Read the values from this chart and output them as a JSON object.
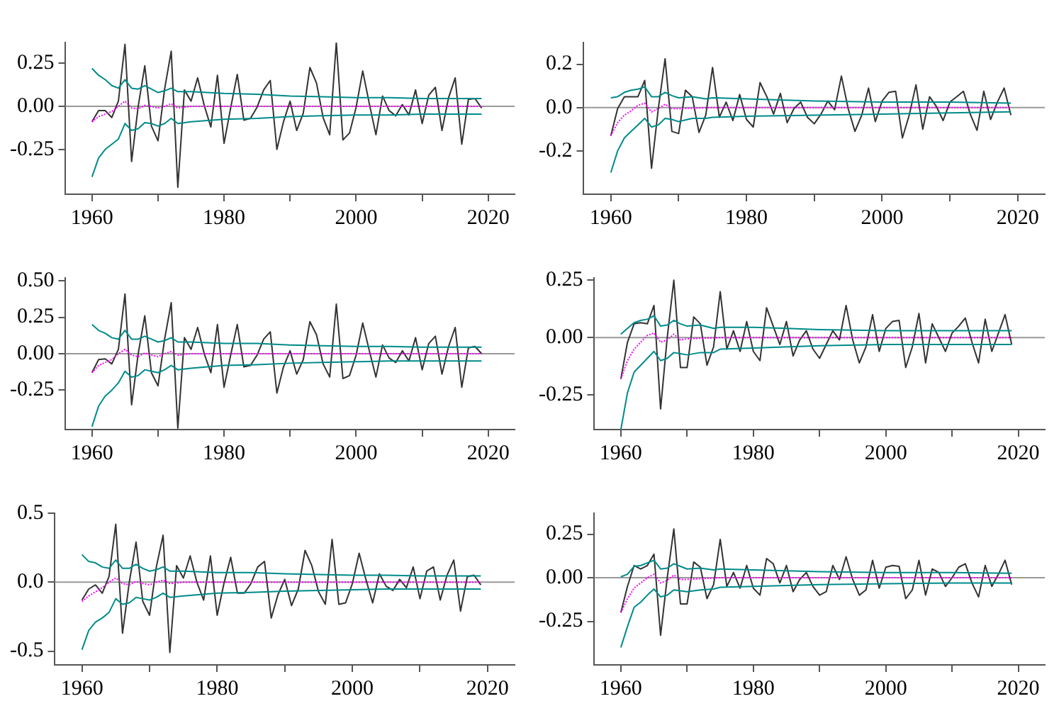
{
  "chart_data": [
    {
      "type": "line",
      "xlim": [
        1956,
        2024
      ],
      "xticks": [
        1960,
        {
          "value": 1970,
          "label": null
        },
        1980,
        {
          "value": 1990,
          "label": null
        },
        2000,
        {
          "value": 2010,
          "label": null
        },
        2020
      ],
      "ylim": [
        -0.51,
        0.37
      ],
      "yticks": [
        -0.25,
        "0.00",
        0.25
      ],
      "ref_lines": [
        {
          "axis": "y",
          "value": 0,
          "color": "#999999"
        }
      ],
      "series": [
        {
          "color": "#008b8b",
          "x": [
            1960,
            1961,
            1962,
            1963,
            1964,
            1965,
            1966,
            1967,
            1968,
            1969,
            1970,
            1971,
            1972,
            1973,
            1975,
            1980,
            1985,
            1990,
            1995,
            2000,
            2005,
            2010,
            2015,
            2019
          ],
          "values": [
            0.22,
            0.18,
            0.155,
            0.12,
            0.105,
            0.155,
            0.105,
            0.1,
            0.12,
            0.1,
            0.08,
            0.09,
            0.105,
            0.085,
            0.085,
            0.075,
            0.07,
            0.06,
            0.055,
            0.05,
            0.05,
            0.045,
            0.045,
            0.045
          ]
        },
        {
          "color": "#008b8b",
          "x": [
            1960,
            1961,
            1962,
            1963,
            1964,
            1965,
            1966,
            1967,
            1968,
            1969,
            1970,
            1971,
            1972,
            1973,
            1975,
            1980,
            1985,
            1990,
            1995,
            2000,
            2005,
            2010,
            2015,
            2019
          ],
          "values": [
            -0.41,
            -0.3,
            -0.25,
            -0.22,
            -0.19,
            -0.1,
            -0.14,
            -0.13,
            -0.095,
            -0.1,
            -0.115,
            -0.1,
            -0.07,
            -0.1,
            -0.09,
            -0.075,
            -0.07,
            -0.06,
            -0.055,
            -0.05,
            -0.05,
            -0.045,
            -0.045,
            -0.045
          ]
        },
        {
          "color": "#ff00ff",
          "line_style": "dotted",
          "x": [
            1960,
            1961,
            1962,
            1963,
            1964,
            1965,
            1966,
            1967,
            1968,
            1969,
            1970,
            1971,
            1972,
            1973,
            1975,
            1980,
            2019
          ],
          "values": [
            -0.09,
            -0.06,
            -0.045,
            -0.03,
            0.0,
            0.03,
            -0.01,
            -0.015,
            0.005,
            0.0,
            -0.01,
            0.0,
            0.015,
            -0.01,
            0.0,
            0.0,
            0.0
          ]
        },
        {
          "color": "#333333",
          "x": [
            1960,
            1961,
            1962,
            1963,
            1964,
            1965,
            1966,
            1967,
            1968,
            1969,
            1970,
            1971,
            1972,
            1973,
            1974,
            1975,
            1976,
            1977,
            1978,
            1979,
            1980,
            1981,
            1982,
            1983,
            1984,
            1985,
            1986,
            1987,
            1988,
            1989,
            1990,
            1991,
            1992,
            1993,
            1994,
            1995,
            1996,
            1997,
            1998,
            1999,
            2000,
            2001,
            2002,
            2003,
            2004,
            2005,
            2006,
            2007,
            2008,
            2009,
            2010,
            2011,
            2012,
            2013,
            2014,
            2015,
            2016,
            2017,
            2018,
            2019
          ],
          "values": [
            -0.09,
            -0.025,
            -0.025,
            -0.065,
            0.03,
            0.36,
            -0.32,
            0.0,
            0.235,
            -0.115,
            -0.2,
            0.1,
            0.32,
            -0.47,
            0.095,
            0.03,
            0.165,
            0.005,
            -0.12,
            0.18,
            -0.215,
            -0.01,
            0.185,
            -0.08,
            -0.07,
            -0.005,
            0.095,
            0.15,
            -0.25,
            -0.09,
            0.03,
            -0.14,
            -0.04,
            0.225,
            0.135,
            -0.065,
            -0.165,
            0.37,
            -0.195,
            -0.155,
            -0.005,
            0.205,
            0.015,
            -0.165,
            0.06,
            -0.025,
            -0.055,
            0.01,
            -0.05,
            0.095,
            -0.1,
            0.065,
            0.11,
            -0.14,
            0.05,
            0.165,
            -0.22,
            0.04,
            0.045,
            -0.01
          ]
        }
      ]
    },
    {
      "type": "line",
      "xlim": [
        1956,
        2024
      ],
      "xticks": [
        1960,
        {
          "value": 1970,
          "label": null
        },
        1980,
        {
          "value": 1990,
          "label": null
        },
        2000,
        {
          "value": 2010,
          "label": null
        },
        2020
      ],
      "ylim": [
        -0.4,
        0.3
      ],
      "yticks": [
        -0.2,
        "0.0",
        0.2
      ],
      "ref_lines": [
        {
          "axis": "y",
          "value": 0,
          "color": "#999999"
        }
      ],
      "series": [
        {
          "color": "#008b8b",
          "x": [
            1960,
            1961,
            1962,
            1963,
            1964,
            1965,
            1966,
            1967,
            1968,
            1969,
            1970,
            1972,
            1974,
            1975,
            1980,
            1985,
            1990,
            2000,
            2010,
            2019
          ],
          "values": [
            0.045,
            0.05,
            0.07,
            0.08,
            0.085,
            0.095,
            0.05,
            0.05,
            0.07,
            0.055,
            0.045,
            0.05,
            0.04,
            0.045,
            0.04,
            0.035,
            0.03,
            0.025,
            0.025,
            0.02
          ]
        },
        {
          "color": "#008b8b",
          "x": [
            1960,
            1961,
            1962,
            1963,
            1964,
            1965,
            1966,
            1967,
            1968,
            1969,
            1970,
            1972,
            1974,
            1975,
            1980,
            1990,
            2000,
            2010,
            2019
          ],
          "values": [
            -0.3,
            -0.2,
            -0.14,
            -0.11,
            -0.08,
            -0.05,
            -0.09,
            -0.08,
            -0.05,
            -0.055,
            -0.065,
            -0.05,
            -0.05,
            -0.045,
            -0.04,
            -0.035,
            -0.03,
            -0.025,
            -0.02
          ]
        },
        {
          "color": "#ff00ff",
          "line_style": "dotted",
          "x": [
            1960,
            1961,
            1962,
            1963,
            1964,
            1965,
            1966,
            1967,
            1968,
            1969,
            1970,
            1975,
            2019
          ],
          "values": [
            -0.13,
            -0.07,
            -0.035,
            -0.015,
            0.01,
            0.02,
            -0.02,
            -0.005,
            0.015,
            -0.005,
            -0.005,
            0.0,
            0.0
          ]
        },
        {
          "color": "#333333",
          "x": [
            1960,
            1961,
            1962,
            1963,
            1964,
            1965,
            1966,
            1967,
            1968,
            1969,
            1970,
            1971,
            1972,
            1973,
            1974,
            1975,
            1976,
            1977,
            1978,
            1979,
            1980,
            1981,
            1982,
            1983,
            1984,
            1985,
            1986,
            1987,
            1988,
            1989,
            1990,
            1991,
            1992,
            1993,
            1994,
            1995,
            1996,
            1997,
            1998,
            1999,
            2000,
            2001,
            2002,
            2003,
            2004,
            2005,
            2006,
            2007,
            2008,
            2009,
            2010,
            2011,
            2012,
            2013,
            2014,
            2015,
            2016,
            2017,
            2018,
            2019
          ],
          "values": [
            -0.13,
            -0.005,
            0.05,
            0.05,
            0.05,
            0.125,
            -0.28,
            -0.005,
            0.225,
            -0.11,
            -0.12,
            0.08,
            0.05,
            -0.115,
            -0.035,
            0.185,
            -0.045,
            0.025,
            -0.06,
            0.06,
            -0.055,
            -0.09,
            0.115,
            0.05,
            -0.03,
            0.065,
            -0.07,
            -0.005,
            0.025,
            -0.045,
            -0.075,
            -0.03,
            0.03,
            -0.01,
            0.145,
            -0.005,
            -0.11,
            -0.035,
            0.09,
            -0.065,
            0.03,
            0.07,
            0.075,
            -0.14,
            -0.035,
            0.105,
            -0.1,
            0.05,
            0.005,
            -0.06,
            0.025,
            0.05,
            0.075,
            -0.03,
            -0.105,
            0.075,
            -0.055,
            0.025,
            0.09,
            -0.035
          ]
        }
      ]
    },
    {
      "type": "line",
      "xlim": [
        1956,
        2024
      ],
      "xticks": [
        1960,
        {
          "value": 1970,
          "label": null
        },
        1980,
        {
          "value": 1990,
          "label": null
        },
        2000,
        {
          "value": 2010,
          "label": null
        },
        2020
      ],
      "ylim": [
        -0.52,
        0.52
      ],
      "yticks": [
        -0.25,
        "0.00",
        0.25,
        "0.50"
      ],
      "ref_lines": [
        {
          "axis": "y",
          "value": 0,
          "color": "#999999"
        }
      ],
      "series": [
        {
          "color": "#008b8b",
          "x": [
            1960,
            1961,
            1962,
            1963,
            1964,
            1965,
            1966,
            1967,
            1968,
            1969,
            1970,
            1971,
            1972,
            1973,
            1975,
            1980,
            1985,
            1990,
            1995,
            2000,
            2005,
            2010,
            2019
          ],
          "values": [
            0.2,
            0.16,
            0.14,
            0.11,
            0.1,
            0.16,
            0.1,
            0.1,
            0.12,
            0.1,
            0.08,
            0.09,
            0.11,
            0.08,
            0.08,
            0.07,
            0.07,
            0.06,
            0.055,
            0.05,
            0.05,
            0.045,
            0.045
          ]
        },
        {
          "color": "#008b8b",
          "x": [
            1960,
            1961,
            1962,
            1963,
            1964,
            1965,
            1966,
            1967,
            1968,
            1969,
            1970,
            1971,
            1972,
            1973,
            1975,
            1980,
            1985,
            1990,
            1995,
            2000,
            2005,
            2010,
            2019
          ],
          "values": [
            -0.5,
            -0.36,
            -0.29,
            -0.25,
            -0.2,
            -0.12,
            -0.16,
            -0.15,
            -0.11,
            -0.12,
            -0.13,
            -0.11,
            -0.08,
            -0.11,
            -0.1,
            -0.08,
            -0.075,
            -0.065,
            -0.06,
            -0.055,
            -0.05,
            -0.05,
            -0.05
          ]
        },
        {
          "color": "#ff00ff",
          "line_style": "dotted",
          "x": [
            1960,
            1961,
            1962,
            1963,
            1964,
            1965,
            1966,
            1967,
            1968,
            1969,
            1970,
            1971,
            1972,
            1973,
            1975,
            1980,
            2019
          ],
          "values": [
            -0.13,
            -0.08,
            -0.06,
            -0.04,
            0.0,
            0.03,
            -0.01,
            -0.02,
            0.005,
            -0.01,
            -0.02,
            0.0,
            0.015,
            -0.01,
            0.0,
            0.0,
            0.0
          ]
        },
        {
          "color": "#333333",
          "x": [
            1960,
            1961,
            1962,
            1963,
            1964,
            1965,
            1966,
            1967,
            1968,
            1969,
            1970,
            1971,
            1972,
            1973,
            1974,
            1975,
            1976,
            1977,
            1978,
            1979,
            1980,
            1981,
            1982,
            1983,
            1984,
            1985,
            1986,
            1987,
            1988,
            1989,
            1990,
            1991,
            1992,
            1993,
            1994,
            1995,
            1996,
            1997,
            1998,
            1999,
            2000,
            2001,
            2002,
            2003,
            2004,
            2005,
            2006,
            2007,
            2008,
            2009,
            2010,
            2011,
            2012,
            2013,
            2014,
            2015,
            2016,
            2017,
            2018,
            2019
          ],
          "values": [
            -0.13,
            -0.04,
            -0.035,
            -0.07,
            0.03,
            0.41,
            -0.35,
            0.0,
            0.26,
            -0.13,
            -0.22,
            0.1,
            0.35,
            -0.51,
            0.11,
            0.03,
            0.18,
            0.0,
            -0.13,
            0.2,
            -0.23,
            -0.01,
            0.2,
            -0.09,
            -0.08,
            -0.01,
            0.1,
            0.15,
            -0.27,
            -0.09,
            0.02,
            -0.14,
            -0.04,
            0.22,
            0.13,
            -0.07,
            -0.16,
            0.34,
            -0.17,
            -0.15,
            -0.01,
            0.21,
            0.02,
            -0.16,
            0.06,
            -0.03,
            -0.06,
            0.02,
            -0.05,
            0.11,
            -0.11,
            0.07,
            0.12,
            -0.14,
            0.05,
            0.18,
            -0.23,
            0.04,
            0.05,
            0.0
          ]
        }
      ]
    },
    {
      "type": "line",
      "xlim": [
        1956,
        2024
      ],
      "xticks": [
        1960,
        {
          "value": 1970,
          "label": null
        },
        1980,
        {
          "value": 1990,
          "label": null
        },
        2000,
        {
          "value": 2010,
          "label": null
        },
        2020
      ],
      "ylim": [
        -0.4,
        0.26
      ],
      "yticks": [
        -0.25,
        "0.00",
        0.25
      ],
      "ref_lines": [
        {
          "axis": "y",
          "value": 0,
          "color": "#999999"
        }
      ],
      "series": [
        {
          "color": "#008b8b",
          "x": [
            1960,
            1961,
            1962,
            1963,
            1964,
            1965,
            1966,
            1967,
            1968,
            1969,
            1970,
            1972,
            1974,
            1975,
            1980,
            1985,
            1990,
            2000,
            2010,
            2019
          ],
          "values": [
            0.015,
            0.04,
            0.065,
            0.075,
            0.08,
            0.095,
            0.05,
            0.055,
            0.075,
            0.06,
            0.05,
            0.055,
            0.04,
            0.045,
            0.045,
            0.04,
            0.035,
            0.03,
            0.03,
            0.03
          ]
        },
        {
          "color": "#008b8b",
          "x": [
            1960,
            1961,
            1962,
            1963,
            1964,
            1965,
            1966,
            1967,
            1968,
            1969,
            1970,
            1972,
            1974,
            1975,
            1980,
            1990,
            2000,
            2010,
            2019
          ],
          "values": [
            -0.4,
            -0.24,
            -0.15,
            -0.12,
            -0.09,
            -0.06,
            -0.1,
            -0.09,
            -0.065,
            -0.07,
            -0.075,
            -0.065,
            -0.065,
            -0.05,
            -0.045,
            -0.035,
            -0.03,
            -0.03,
            -0.03
          ]
        },
        {
          "color": "#ff00ff",
          "line_style": "dotted",
          "x": [
            1960,
            1961,
            1962,
            1963,
            1964,
            1965,
            1966,
            1967,
            1968,
            1969,
            1970,
            1975,
            2019
          ],
          "values": [
            -0.18,
            -0.1,
            -0.05,
            -0.02,
            0.01,
            0.02,
            -0.02,
            -0.01,
            0.015,
            -0.01,
            -0.005,
            0.0,
            0.0
          ]
        },
        {
          "color": "#333333",
          "x": [
            1960,
            1961,
            1962,
            1963,
            1964,
            1965,
            1966,
            1967,
            1968,
            1969,
            1970,
            1971,
            1972,
            1973,
            1974,
            1975,
            1976,
            1977,
            1978,
            1979,
            1980,
            1981,
            1982,
            1983,
            1984,
            1985,
            1986,
            1987,
            1988,
            1989,
            1990,
            1991,
            1992,
            1993,
            1994,
            1995,
            1996,
            1997,
            1998,
            1999,
            2000,
            2001,
            2002,
            2003,
            2004,
            2005,
            2006,
            2007,
            2008,
            2009,
            2010,
            2011,
            2012,
            2013,
            2014,
            2015,
            2016,
            2017,
            2018,
            2019
          ],
          "values": [
            -0.18,
            -0.02,
            0.06,
            0.065,
            0.06,
            0.14,
            -0.31,
            0.0,
            0.25,
            -0.13,
            -0.13,
            0.09,
            0.06,
            -0.12,
            -0.04,
            0.2,
            -0.05,
            0.03,
            -0.06,
            0.07,
            -0.06,
            -0.1,
            0.13,
            0.05,
            -0.03,
            0.07,
            -0.08,
            -0.01,
            0.03,
            -0.05,
            -0.09,
            -0.03,
            0.03,
            -0.01,
            0.14,
            -0.01,
            -0.11,
            -0.04,
            0.1,
            -0.06,
            0.04,
            0.07,
            0.075,
            -0.13,
            -0.04,
            0.105,
            -0.11,
            0.06,
            0.0,
            -0.06,
            0.02,
            0.05,
            0.085,
            -0.02,
            -0.11,
            0.08,
            -0.06,
            0.02,
            0.1,
            -0.03
          ]
        }
      ]
    },
    {
      "type": "line",
      "xlim": [
        1956,
        2024
      ],
      "xticks": [
        1960,
        {
          "value": 1970,
          "label": null
        },
        1980,
        {
          "value": 1990,
          "label": null
        },
        2000,
        {
          "value": 2010,
          "label": null
        },
        2020
      ],
      "ylim": [
        -0.6,
        0.5
      ],
      "yticks": [
        -0.5,
        "0.0",
        0.5
      ],
      "ref_lines": [
        {
          "axis": "y",
          "value": 0,
          "color": "#999999"
        }
      ],
      "series": [
        {
          "color": "#008b8b",
          "x": [
            1960,
            1961,
            1962,
            1963,
            1964,
            1965,
            1966,
            1967,
            1968,
            1969,
            1970,
            1971,
            1972,
            1973,
            1975,
            1980,
            1985,
            1990,
            1995,
            2000,
            2005,
            2010,
            2019
          ],
          "values": [
            0.2,
            0.15,
            0.14,
            0.11,
            0.1,
            0.16,
            0.1,
            0.1,
            0.13,
            0.1,
            0.08,
            0.09,
            0.11,
            0.08,
            0.08,
            0.07,
            0.07,
            0.06,
            0.055,
            0.05,
            0.05,
            0.045,
            0.045
          ]
        },
        {
          "color": "#008b8b",
          "x": [
            1960,
            1961,
            1962,
            1963,
            1964,
            1965,
            1966,
            1967,
            1968,
            1969,
            1970,
            1971,
            1972,
            1973,
            1975,
            1980,
            1985,
            1990,
            1995,
            2000,
            2005,
            2010,
            2019
          ],
          "values": [
            -0.49,
            -0.35,
            -0.29,
            -0.26,
            -0.22,
            -0.12,
            -0.16,
            -0.15,
            -0.11,
            -0.12,
            -0.13,
            -0.11,
            -0.08,
            -0.11,
            -0.1,
            -0.08,
            -0.075,
            -0.065,
            -0.06,
            -0.055,
            -0.05,
            -0.05,
            -0.05
          ]
        },
        {
          "color": "#ff00ff",
          "line_style": "dotted",
          "x": [
            1960,
            1961,
            1962,
            1963,
            1964,
            1965,
            1966,
            1967,
            1968,
            1969,
            1970,
            1971,
            1972,
            1973,
            1975,
            1980,
            2019
          ],
          "values": [
            -0.14,
            -0.1,
            -0.07,
            -0.04,
            0.0,
            0.03,
            -0.01,
            -0.02,
            0.005,
            -0.01,
            -0.02,
            0.0,
            0.015,
            -0.01,
            0.0,
            0.0,
            0.0
          ]
        },
        {
          "color": "#333333",
          "x": [
            1960,
            1961,
            1962,
            1963,
            1964,
            1965,
            1966,
            1967,
            1968,
            1969,
            1970,
            1971,
            1972,
            1973,
            1974,
            1975,
            1976,
            1977,
            1978,
            1979,
            1980,
            1981,
            1982,
            1983,
            1984,
            1985,
            1986,
            1987,
            1988,
            1989,
            1990,
            1991,
            1992,
            1993,
            1994,
            1995,
            1996,
            1997,
            1998,
            1999,
            2000,
            2001,
            2002,
            2003,
            2004,
            2005,
            2006,
            2007,
            2008,
            2009,
            2010,
            2011,
            2012,
            2013,
            2014,
            2015,
            2016,
            2017,
            2018,
            2019
          ],
          "values": [
            -0.13,
            -0.05,
            -0.02,
            -0.08,
            0.04,
            0.42,
            -0.37,
            0.0,
            0.29,
            -0.14,
            -0.24,
            0.11,
            0.34,
            -0.51,
            0.12,
            0.03,
            0.19,
            0.0,
            -0.13,
            0.19,
            -0.24,
            -0.01,
            0.18,
            -0.08,
            -0.08,
            -0.01,
            0.11,
            0.15,
            -0.26,
            -0.09,
            0.02,
            -0.17,
            -0.05,
            0.23,
            0.12,
            -0.07,
            -0.16,
            0.31,
            -0.16,
            -0.15,
            -0.01,
            0.21,
            0.02,
            -0.15,
            0.06,
            -0.03,
            -0.06,
            0.02,
            -0.04,
            0.11,
            -0.12,
            0.08,
            0.11,
            -0.13,
            0.05,
            0.16,
            -0.21,
            0.04,
            0.05,
            -0.02
          ]
        }
      ]
    },
    {
      "type": "line",
      "xlim": [
        1956,
        2024
      ],
      "xticks": [
        1960,
        {
          "value": 1970,
          "label": null
        },
        1980,
        {
          "value": 1990,
          "label": null
        },
        2000,
        {
          "value": 2010,
          "label": null
        },
        2020
      ],
      "ylim": [
        -0.5,
        0.37
      ],
      "yticks": [
        -0.25,
        "0.00",
        0.25
      ],
      "ref_lines": [
        {
          "axis": "y",
          "value": 0,
          "color": "#999999"
        }
      ],
      "series": [
        {
          "color": "#008b8b",
          "x": [
            1960,
            1961,
            1962,
            1963,
            1964,
            1965,
            1966,
            1967,
            1968,
            1969,
            1970,
            1972,
            1974,
            1975,
            1980,
            1985,
            1990,
            2000,
            2010,
            2019
          ],
          "values": [
            0.005,
            0.02,
            0.065,
            0.07,
            0.085,
            0.1,
            0.05,
            0.055,
            0.08,
            0.065,
            0.05,
            0.055,
            0.045,
            0.05,
            0.045,
            0.04,
            0.035,
            0.03,
            0.03,
            0.025
          ]
        },
        {
          "color": "#008b8b",
          "x": [
            1960,
            1961,
            1962,
            1963,
            1964,
            1965,
            1966,
            1967,
            1968,
            1969,
            1970,
            1972,
            1974,
            1975,
            1980,
            1990,
            2000,
            2010,
            2019
          ],
          "values": [
            -0.4,
            -0.28,
            -0.17,
            -0.14,
            -0.1,
            -0.065,
            -0.11,
            -0.1,
            -0.07,
            -0.075,
            -0.08,
            -0.07,
            -0.065,
            -0.055,
            -0.05,
            -0.04,
            -0.035,
            -0.03,
            -0.03
          ]
        },
        {
          "color": "#ff00ff",
          "line_style": "dotted",
          "x": [
            1960,
            1961,
            1962,
            1963,
            1964,
            1965,
            1966,
            1967,
            1968,
            1969,
            1970,
            1975,
            2019
          ],
          "values": [
            -0.2,
            -0.12,
            -0.06,
            -0.03,
            0.0,
            0.02,
            -0.03,
            -0.015,
            0.015,
            -0.01,
            -0.01,
            0.0,
            0.0
          ]
        },
        {
          "color": "#333333",
          "x": [
            1960,
            1961,
            1962,
            1963,
            1964,
            1965,
            1966,
            1967,
            1968,
            1969,
            1970,
            1971,
            1972,
            1973,
            1974,
            1975,
            1976,
            1977,
            1978,
            1979,
            1980,
            1981,
            1982,
            1983,
            1984,
            1985,
            1986,
            1987,
            1988,
            1989,
            1990,
            1991,
            1992,
            1993,
            1994,
            1995,
            1996,
            1997,
            1998,
            1999,
            2000,
            2001,
            2002,
            2003,
            2004,
            2005,
            2006,
            2007,
            2008,
            2009,
            2010,
            2011,
            2012,
            2013,
            2014,
            2015,
            2016,
            2017,
            2018,
            2019
          ],
          "values": [
            -0.2,
            -0.05,
            0.07,
            0.05,
            0.07,
            0.135,
            -0.33,
            0.0,
            0.28,
            -0.15,
            -0.15,
            0.09,
            0.06,
            -0.12,
            -0.04,
            0.22,
            -0.05,
            0.03,
            -0.06,
            0.07,
            -0.06,
            -0.1,
            0.11,
            0.08,
            -0.03,
            0.07,
            -0.08,
            -0.01,
            0.03,
            -0.05,
            -0.1,
            -0.08,
            0.07,
            -0.01,
            0.12,
            -0.01,
            -0.1,
            -0.07,
            0.1,
            -0.06,
            0.06,
            0.07,
            0.065,
            -0.12,
            -0.07,
            0.1,
            -0.1,
            0.05,
            0.03,
            -0.05,
            0.0,
            0.06,
            0.08,
            -0.03,
            -0.11,
            0.07,
            -0.05,
            0.02,
            0.1,
            -0.04
          ]
        }
      ]
    }
  ]
}
